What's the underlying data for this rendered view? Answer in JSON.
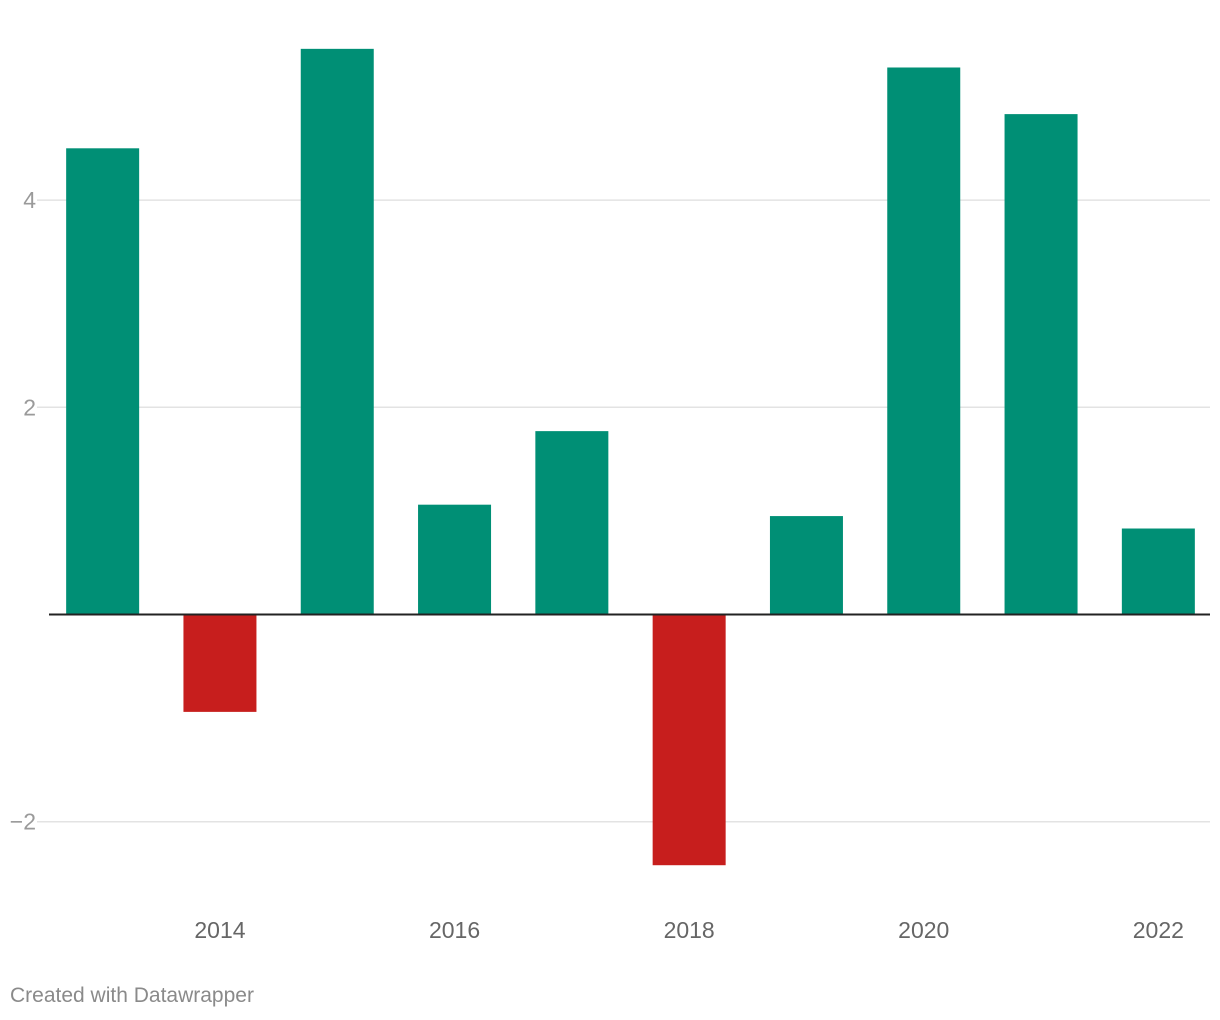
{
  "chart_data": {
    "type": "bar",
    "x": [
      2013,
      2014,
      2015,
      2016,
      2017,
      2018,
      2019,
      2020,
      2021,
      2022
    ],
    "values": [
      4.5,
      -0.94,
      5.46,
      1.06,
      1.77,
      -2.42,
      0.95,
      5.28,
      4.83,
      0.83
    ],
    "x_tick_labels": [
      "2014",
      "2016",
      "2018",
      "2020",
      "2022"
    ],
    "x_tick_values": [
      2014,
      2016,
      2018,
      2020,
      2022
    ],
    "y_tick_labels": [
      "4",
      "2",
      "−2"
    ],
    "y_tick_values": [
      4,
      2,
      -2
    ],
    "ylim": [
      -2.7,
      5.6
    ],
    "grid": true,
    "colors": {
      "positive": "#008f75",
      "negative": "#c71e1d",
      "gridline": "#e3e3e3",
      "baseline": "#222222",
      "y_tick_text": "#9a9a9a",
      "x_tick_text": "#666666"
    }
  },
  "footer": {
    "credit": "Created with Datawrapper"
  }
}
